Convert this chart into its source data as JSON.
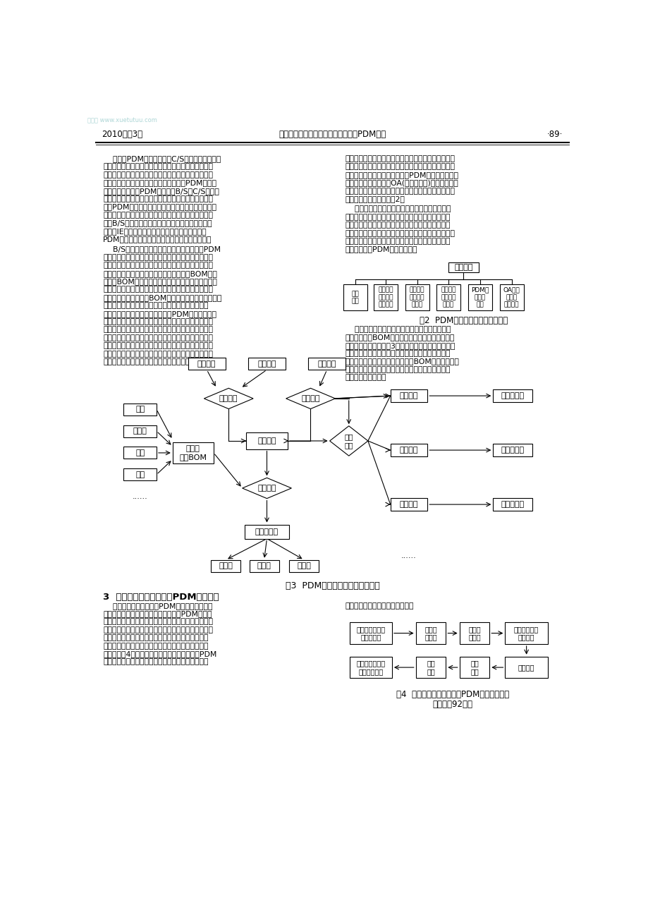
{
  "background": "#ffffff",
  "watermark": "学兔兔 www.xuetutuu.com",
  "header_left": "2010年第3期",
  "header_center": "韩顺武，等：以汽车零部件为核心的PDM研究",
  "header_right": "·89·",
  "fig2_caption": "图2  PDM系统中文档管理模块功能",
  "fig3_caption": "图3  PDM系统中产品配置管理框图",
  "section3_title": "3  以汽车零部件为核心的PDM实施方案",
  "fig4_caption": "图4  以汽车零部件为核心的PDM系统实施方案",
  "fig4_note": "（下转第92页）"
}
